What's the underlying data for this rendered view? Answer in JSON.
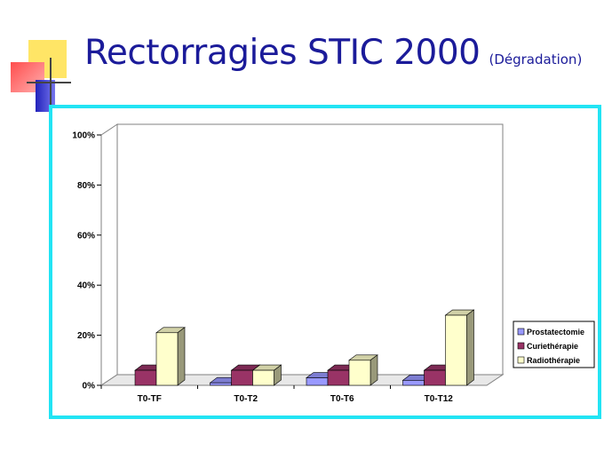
{
  "title": {
    "main": "Rectorragies STIC 2000",
    "sub": "(Dégradation)"
  },
  "chart_data": {
    "type": "bar",
    "categories": [
      "T0-TF",
      "T0-T2",
      "T0-T6",
      "T0-T12"
    ],
    "series": [
      {
        "name": "Prostatectomie",
        "values": [
          0,
          1,
          3,
          2
        ],
        "color": "#9999ff"
      },
      {
        "name": "Curiethérapie",
        "values": [
          6,
          6,
          6,
          6
        ],
        "color": "#993366"
      },
      {
        "name": "Radiothérapie",
        "values": [
          21,
          6,
          10,
          28
        ],
        "color": "#ffffcc"
      }
    ],
    "yticks": [
      "0%",
      "20%",
      "40%",
      "60%",
      "80%",
      "100%"
    ],
    "ylim": [
      0,
      100
    ],
    "legend": "right",
    "grid": false
  },
  "colors": {
    "title": "#1b1b9a",
    "frame_border": "#22e4f4",
    "deco_yellow": "#ffe566",
    "deco_red": "#ff5a5a",
    "deco_blue": "#3333cc"
  }
}
